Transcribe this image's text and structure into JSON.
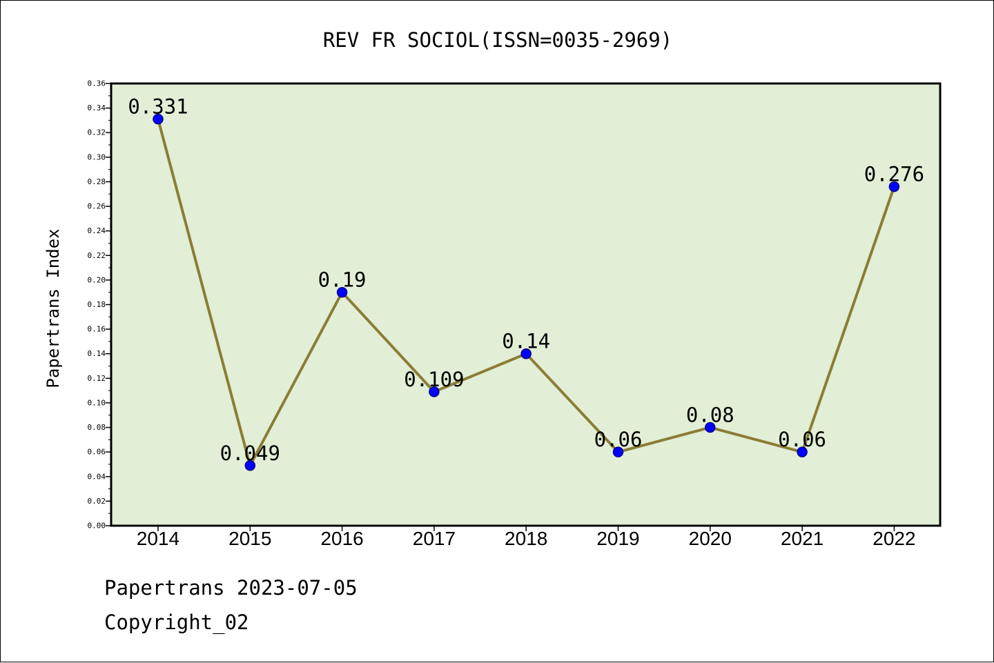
{
  "chart_data": {
    "type": "line",
    "title": "REV FR SOCIOL(ISSN=0035-2969)",
    "ylabel": "Papertrans Index",
    "xlabel": "",
    "x": [
      "2014",
      "2015",
      "2016",
      "2017",
      "2018",
      "2019",
      "2020",
      "2021",
      "2022"
    ],
    "series": [
      {
        "values": [
          0.331,
          0.049,
          0.19,
          0.109,
          0.14,
          0.06,
          0.08,
          0.06,
          0.276
        ],
        "labels": [
          "0.331",
          "0.049",
          "0.19",
          "0.109",
          "0.14",
          "0.06",
          "0.08",
          "0.06",
          "0.276"
        ]
      }
    ],
    "ylim": [
      0,
      0.36
    ],
    "yticks": [
      "0.00",
      "0.02",
      "0.04",
      "0.06",
      "0.08",
      "0.10",
      "0.12",
      "0.14",
      "0.16",
      "0.18",
      "0.20",
      "0.22",
      "0.24",
      "0.26",
      "0.28",
      "0.30",
      "0.32",
      "0.34",
      "0.36"
    ],
    "grid": false,
    "colors": {
      "plot_background": "#e2efd6",
      "line": "#8b7d35",
      "marker": "#0000ff",
      "marker_edge": "#00008b"
    }
  },
  "footer": {
    "line1": "Papertrans 2023-07-05",
    "line2": "Copyright_02"
  }
}
